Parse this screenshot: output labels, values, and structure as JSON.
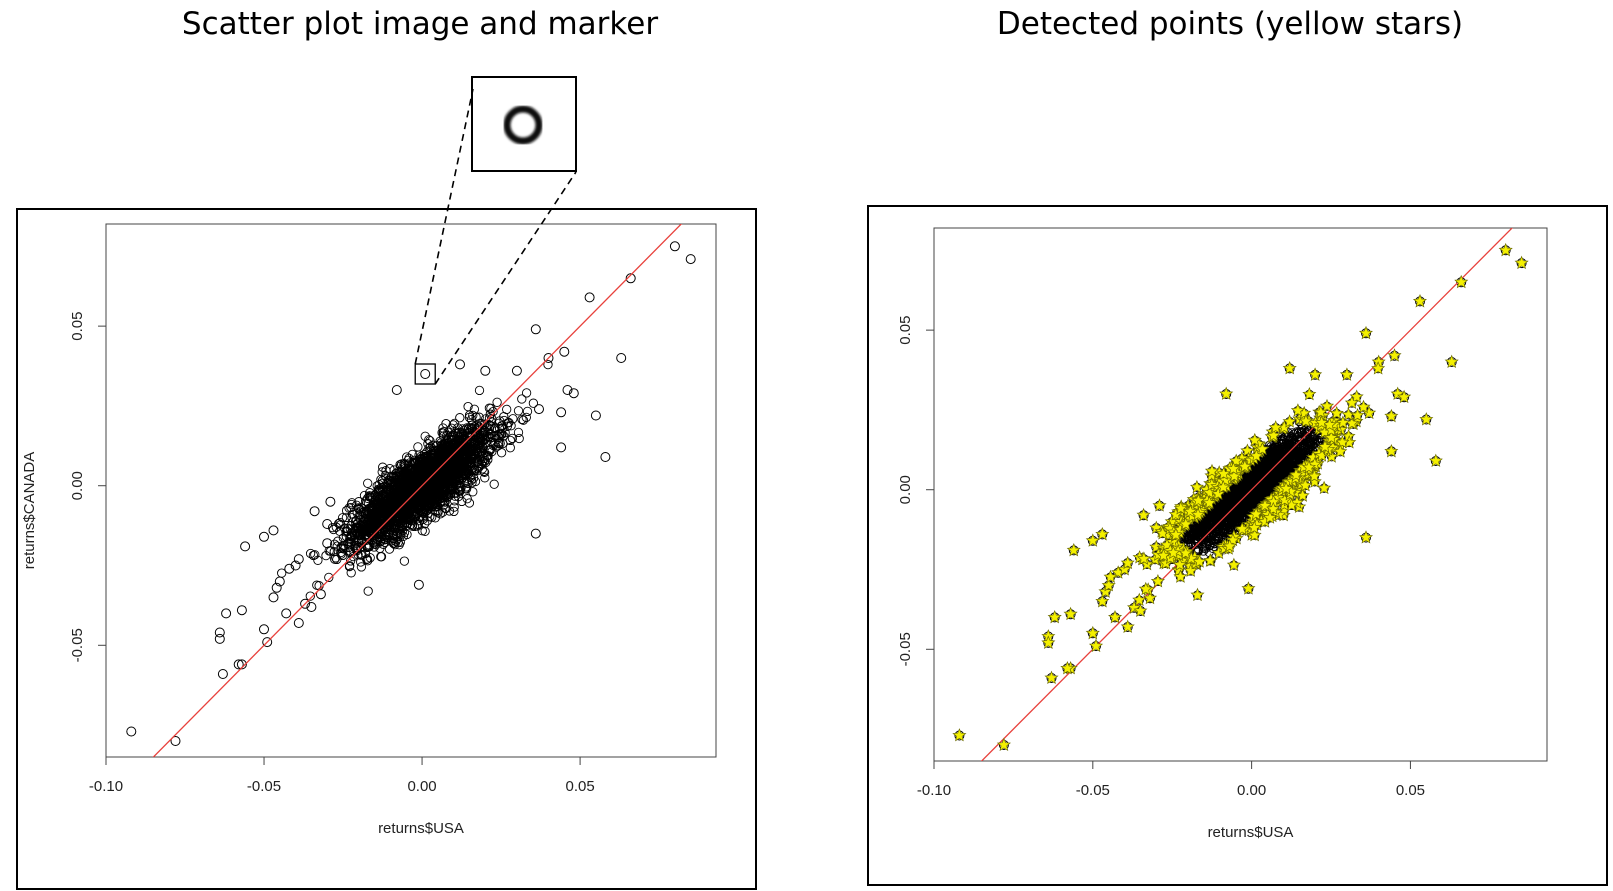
{
  "titles": {
    "left": "Scatter plot image and marker",
    "right": "Detected points (yellow stars)"
  },
  "marker_glyph": "circle-marker-icon",
  "colors": {
    "regression": "#e8413c",
    "star_fill": "#f4f000",
    "star_stroke": "#6b6b00",
    "point": "#000000"
  },
  "chart_data": [
    {
      "type": "scatter",
      "title": "",
      "xlabel": "returns$USA",
      "ylabel": "returns$CANADA",
      "xlim": [
        -0.1,
        0.093
      ],
      "ylim": [
        -0.085,
        0.082
      ],
      "xticks": [
        -0.1,
        -0.05,
        0.0,
        0.05
      ],
      "xtick_labels": [
        "-0.10",
        "-0.05",
        "0.00",
        "0.05"
      ],
      "yticks": [
        -0.05,
        0.0,
        0.05
      ],
      "ytick_labels": [
        "-0.05",
        "0.00",
        "0.05"
      ],
      "grid": false,
      "regression_line": {
        "slope": 1.0,
        "intercept": 0.0
      },
      "marked_point": [
        0.001,
        0.035
      ],
      "outliers": [
        [
          -0.092,
          -0.077
        ],
        [
          -0.078,
          -0.08
        ],
        [
          -0.063,
          -0.059
        ],
        [
          -0.064,
          -0.046
        ],
        [
          -0.064,
          -0.048
        ],
        [
          -0.062,
          -0.04
        ],
        [
          -0.057,
          -0.039
        ],
        [
          -0.057,
          -0.056
        ],
        [
          -0.058,
          -0.056
        ],
        [
          -0.056,
          -0.019
        ],
        [
          -0.05,
          -0.016
        ],
        [
          -0.047,
          -0.014
        ],
        [
          -0.05,
          -0.045
        ],
        [
          -0.049,
          -0.049
        ],
        [
          -0.047,
          -0.035
        ],
        [
          -0.046,
          -0.032
        ],
        [
          -0.045,
          -0.03
        ],
        [
          -0.043,
          -0.04
        ],
        [
          -0.042,
          -0.026
        ],
        [
          -0.04,
          -0.025
        ],
        [
          -0.039,
          -0.023
        ],
        [
          -0.039,
          -0.043
        ],
        [
          -0.037,
          -0.037
        ],
        [
          -0.035,
          -0.038
        ],
        [
          -0.032,
          -0.034
        ],
        [
          -0.03,
          -0.018
        ],
        [
          -0.034,
          -0.008
        ],
        [
          -0.03,
          -0.012
        ],
        [
          -0.029,
          -0.005
        ],
        [
          -0.001,
          -0.031
        ],
        [
          0.036,
          -0.015
        ],
        [
          0.063,
          0.04
        ],
        [
          0.066,
          0.065
        ],
        [
          0.08,
          0.075
        ],
        [
          0.085,
          0.071
        ],
        [
          0.053,
          0.059
        ],
        [
          0.045,
          0.042
        ],
        [
          0.04,
          0.04
        ],
        [
          0.046,
          0.03
        ],
        [
          0.048,
          0.029
        ],
        [
          0.036,
          0.049
        ],
        [
          0.055,
          0.022
        ],
        [
          0.058,
          0.009
        ],
        [
          0.044,
          0.023
        ],
        [
          0.037,
          0.024
        ],
        [
          0.044,
          0.012
        ],
        [
          0.012,
          0.038
        ],
        [
          -0.008,
          0.03
        ],
        [
          0.03,
          0.036
        ],
        [
          0.02,
          0.036
        ]
      ],
      "cluster": {
        "center": [
          0.0,
          0.0
        ],
        "spread_x": 0.011,
        "spread_y": 0.009,
        "correlation": 0.82,
        "count": 2600
      }
    },
    {
      "type": "scatter",
      "title": "",
      "xlabel": "returns$USA",
      "ylabel": "returns$CANADA",
      "xlim": [
        -0.1,
        0.093
      ],
      "ylim": [
        -0.085,
        0.082
      ],
      "xticks": [
        -0.1,
        -0.05,
        0.0,
        0.05
      ],
      "xtick_labels": [
        "-0.10",
        "-0.05",
        "0.00",
        "0.05"
      ],
      "yticks": [
        -0.05,
        0.0,
        0.05
      ],
      "ytick_labels": [
        "-0.05",
        "0.00",
        "0.05"
      ],
      "grid": false,
      "regression_line": {
        "slope": 1.0,
        "intercept": 0.0
      },
      "detected_marker": "yellow star",
      "outliers": [
        [
          -0.092,
          -0.077
        ],
        [
          -0.078,
          -0.08
        ],
        [
          -0.063,
          -0.059
        ],
        [
          -0.064,
          -0.046
        ],
        [
          -0.064,
          -0.048
        ],
        [
          -0.062,
          -0.04
        ],
        [
          -0.057,
          -0.039
        ],
        [
          -0.057,
          -0.056
        ],
        [
          -0.058,
          -0.056
        ],
        [
          -0.056,
          -0.019
        ],
        [
          -0.05,
          -0.016
        ],
        [
          -0.047,
          -0.014
        ],
        [
          -0.05,
          -0.045
        ],
        [
          -0.049,
          -0.049
        ],
        [
          -0.047,
          -0.035
        ],
        [
          -0.046,
          -0.032
        ],
        [
          -0.045,
          -0.03
        ],
        [
          -0.043,
          -0.04
        ],
        [
          -0.042,
          -0.026
        ],
        [
          -0.04,
          -0.025
        ],
        [
          -0.039,
          -0.023
        ],
        [
          -0.039,
          -0.043
        ],
        [
          -0.037,
          -0.037
        ],
        [
          -0.035,
          -0.038
        ],
        [
          -0.032,
          -0.034
        ],
        [
          -0.03,
          -0.018
        ],
        [
          -0.034,
          -0.008
        ],
        [
          -0.03,
          -0.012
        ],
        [
          -0.029,
          -0.005
        ],
        [
          -0.001,
          -0.031
        ],
        [
          0.036,
          -0.015
        ],
        [
          0.063,
          0.04
        ],
        [
          0.066,
          0.065
        ],
        [
          0.08,
          0.075
        ],
        [
          0.085,
          0.071
        ],
        [
          0.053,
          0.059
        ],
        [
          0.045,
          0.042
        ],
        [
          0.04,
          0.04
        ],
        [
          0.046,
          0.03
        ],
        [
          0.048,
          0.029
        ],
        [
          0.036,
          0.049
        ],
        [
          0.055,
          0.022
        ],
        [
          0.058,
          0.009
        ],
        [
          0.044,
          0.023
        ],
        [
          0.037,
          0.024
        ],
        [
          0.044,
          0.012
        ],
        [
          0.012,
          0.038
        ],
        [
          -0.008,
          0.03
        ],
        [
          0.03,
          0.036
        ],
        [
          0.02,
          0.036
        ]
      ],
      "cluster": {
        "center": [
          0.0,
          0.0
        ],
        "spread_x": 0.011,
        "spread_y": 0.009,
        "correlation": 0.82,
        "count": 2600
      }
    }
  ]
}
